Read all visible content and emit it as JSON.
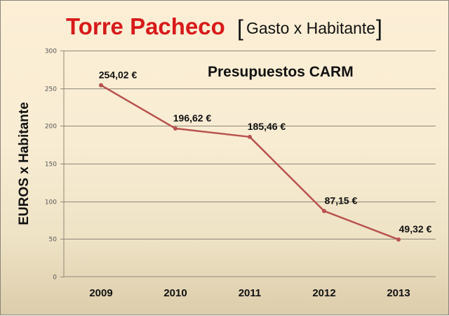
{
  "header": {
    "title": "Torre Pacheco",
    "subtitle_open": "[",
    "subtitle": "Gasto x Habitante",
    "subtitle_close": "]"
  },
  "annotation": "Presupuestos CARM",
  "colors": {
    "title": "#d81a1a",
    "line": "#b8524e",
    "grid": "#8f8878",
    "background_top": "#fcefd6",
    "background_bottom": "#dccdab"
  },
  "chart_data": {
    "type": "line",
    "title": "Torre Pacheco [Gasto x Habitante]",
    "subtitle": "Presupuestos CARM",
    "xlabel": "",
    "ylabel": "EUROS x Habitante",
    "categories": [
      "2009",
      "2010",
      "2011",
      "2012",
      "2013"
    ],
    "series": [
      {
        "name": "Gasto x Habitante",
        "values": [
          254.02,
          196.62,
          185.46,
          87.15,
          49.32
        ],
        "labels": [
          "254,02 €",
          "196,62 €",
          "185,46 €",
          "87,15 €",
          "49,32 €"
        ]
      }
    ],
    "ylim": [
      0,
      300
    ],
    "yticks": [
      "0",
      "50",
      "100",
      "150",
      "200",
      "250",
      "300"
    ],
    "grid": true,
    "legend": "none"
  }
}
